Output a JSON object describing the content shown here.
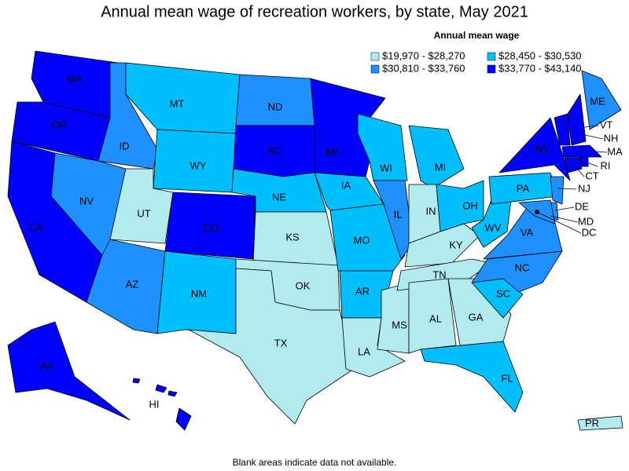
{
  "title": "Annual mean wage of recreation workers, by state, May 2021",
  "legend": {
    "title": "Annual mean wage",
    "entries": [
      {
        "label": "$19,970 - $28,270",
        "color": "#b2ebef"
      },
      {
        "label": "$28,450 - $30,530",
        "color": "#00bfff"
      },
      {
        "label": "$30,810 - $33,760",
        "color": "#1e90ff"
      },
      {
        "label": "$33,770 - $43,140",
        "color": "#0000ff"
      }
    ]
  },
  "states": [
    {
      "label": "WA",
      "class": 3
    },
    {
      "label": "OR",
      "class": 3
    },
    {
      "label": "CA",
      "class": 3
    },
    {
      "label": "NV",
      "class": 2
    },
    {
      "label": "ID",
      "class": 2
    },
    {
      "label": "MT",
      "class": 1
    },
    {
      "label": "WY",
      "class": 1
    },
    {
      "label": "UT",
      "class": 0
    },
    {
      "label": "CO",
      "class": 3
    },
    {
      "label": "AZ",
      "class": 2
    },
    {
      "label": "NM",
      "class": 1
    },
    {
      "label": "ND",
      "class": 2
    },
    {
      "label": "SD",
      "class": 3
    },
    {
      "label": "NE",
      "class": 1
    },
    {
      "label": "KS",
      "class": 0
    },
    {
      "label": "OK",
      "class": 0
    },
    {
      "label": "TX",
      "class": 0
    },
    {
      "label": "MN",
      "class": 3
    },
    {
      "label": "IA",
      "class": 1
    },
    {
      "label": "MO",
      "class": 1
    },
    {
      "label": "AR",
      "class": 1
    },
    {
      "label": "LA",
      "class": 0
    },
    {
      "label": "WI",
      "class": 1
    },
    {
      "label": "IL",
      "class": 2
    },
    {
      "label": "MS",
      "class": 0
    },
    {
      "label": "MI",
      "class": 1
    },
    {
      "label": "IN",
      "class": 0
    },
    {
      "label": "KY",
      "class": 0
    },
    {
      "label": "TN",
      "class": 0
    },
    {
      "label": "AL",
      "class": 0
    },
    {
      "label": "OH",
      "class": 1
    },
    {
      "label": "GA",
      "class": 0
    },
    {
      "label": "FL",
      "class": 1
    },
    {
      "label": "SC",
      "class": 1
    },
    {
      "label": "NC",
      "class": 2
    },
    {
      "label": "VA",
      "class": 2
    },
    {
      "label": "WV",
      "class": 1
    },
    {
      "label": "PA",
      "class": 1
    },
    {
      "label": "NY",
      "class": 3
    },
    {
      "label": "ME",
      "class": 2
    },
    {
      "label": "VT",
      "class": 3
    },
    {
      "label": "NH",
      "class": 3
    },
    {
      "label": "MA",
      "class": 3
    },
    {
      "label": "RI",
      "class": 3
    },
    {
      "label": "CT",
      "class": 3
    },
    {
      "label": "NJ",
      "class": 2
    },
    {
      "label": "DE",
      "class": 2
    },
    {
      "label": "MD",
      "class": 2
    },
    {
      "label": "DC",
      "class": 3
    },
    {
      "label": "AK",
      "class": 3
    },
    {
      "label": "HI",
      "class": 3
    },
    {
      "label": "PR",
      "class": 0
    }
  ],
  "footnote": "Blank areas indicate data not available."
}
